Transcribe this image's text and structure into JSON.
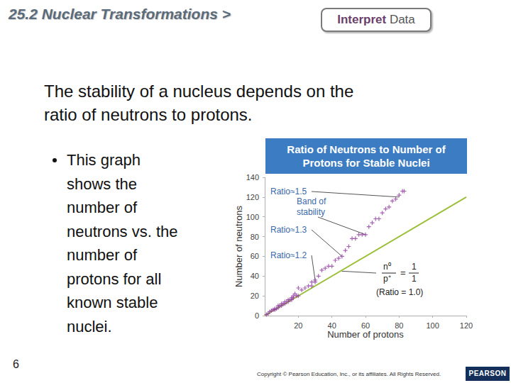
{
  "slide": {
    "header": "25.2 Nuclear Transformations >",
    "tag": [
      "Interpret",
      "Data"
    ],
    "body": [
      "The stability of a nucleus depends on the",
      "ratio of neutrons to protons."
    ],
    "bullet": [
      "This graph",
      "shows the",
      "number of",
      "neutrons vs. the",
      "number of",
      "protons for all",
      "known stable",
      "nuclei."
    ],
    "page_number": "6",
    "copyright": "Copyright © Pearson Education, Inc., or its affiliates. All Rights Reserved.",
    "logo": "PEARSON"
  },
  "chart_data": {
    "type": "scatter",
    "title": "Ratio of Neutrons to Number of Protons for Stable Nuclei",
    "x_label": "Number of protons",
    "y_label": "Number of neutrons",
    "series": [
      {
        "type": "scatter",
        "marker": "plus",
        "color": "#8e3b9e",
        "x": [
          1,
          2,
          3,
          4,
          5,
          6,
          6,
          7,
          8,
          8,
          9,
          10,
          10,
          11,
          12,
          12,
          13,
          14,
          14,
          15,
          16,
          16,
          17,
          17,
          18,
          19,
          20,
          20,
          22,
          24,
          26,
          28,
          28,
          30,
          30,
          32,
          34,
          36,
          38,
          40,
          42,
          44,
          46,
          48,
          50,
          52,
          54,
          56,
          58,
          60,
          62,
          64,
          66,
          68,
          70,
          72,
          74,
          76,
          78,
          80,
          82,
          83
        ],
        "values": [
          1,
          2,
          4,
          5,
          6,
          6,
          7,
          7,
          8,
          10,
          10,
          10,
          12,
          12,
          12,
          14,
          14,
          14,
          16,
          16,
          16,
          18,
          18,
          20,
          22,
          20,
          20,
          28,
          26,
          28,
          30,
          30,
          34,
          34,
          36,
          40,
          46,
          48,
          50,
          50,
          56,
          58,
          60,
          66,
          70,
          78,
          78,
          82,
          82,
          82,
          90,
          94,
          98,
          98,
          104,
          108,
          110,
          116,
          118,
          122,
          126,
          126
        ]
      },
      {
        "type": "line",
        "color": "#9cbf3a",
        "x": [
          0,
          120
        ],
        "values": [
          0,
          120
        ]
      }
    ],
    "annotations": [
      {
        "text": "Band of stability",
        "x": 60,
        "y": 82
      },
      {
        "text": "Ratio≈1.5",
        "x": 80,
        "y": 120
      },
      {
        "text": "Ratio≈1.3",
        "x": 46,
        "y": 60
      },
      {
        "text": "Ratio≈1.2",
        "x": 30,
        "y": 36
      },
      {
        "fraction": [
          "n⁰",
          "p⁺"
        ],
        "equals": "=",
        "rhs": [
          "1",
          "1"
        ],
        "text": "(Ratio = 1.0)",
        "x": 45,
        "y": 45
      }
    ],
    "xlim": [
      0,
      120
    ],
    "xticks": [
      20,
      40,
      60,
      80,
      100,
      120
    ],
    "ylim": [
      0,
      140
    ],
    "yticks": [
      0,
      20,
      40,
      60,
      80,
      100,
      120,
      140
    ],
    "grid": false
  }
}
